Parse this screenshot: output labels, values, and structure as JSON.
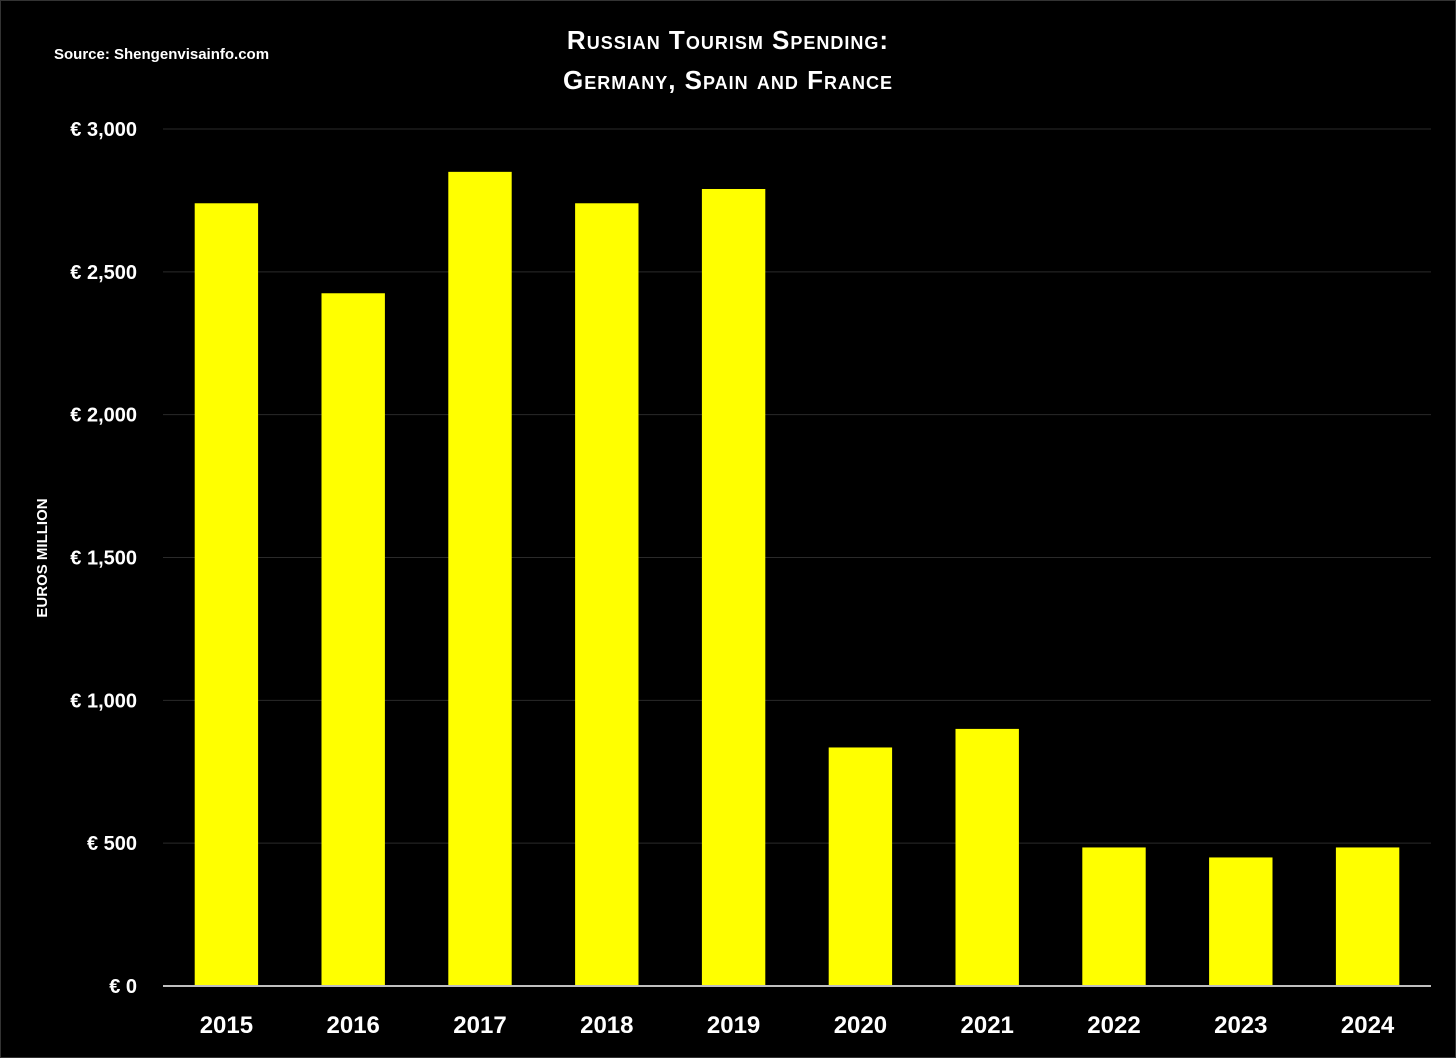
{
  "source": "Source: Shengenvisainfo.com",
  "chart_data": {
    "type": "bar",
    "title_line1": "Russian Tourism Spending:",
    "title_line2": "Germany, Spain and France",
    "xlabel": "",
    "ylabel": "EUROS MILLION",
    "categories": [
      "2015",
      "2016",
      "2017",
      "2018",
      "2019",
      "2020",
      "2021",
      "2022",
      "2023",
      "2024"
    ],
    "values": [
      2740,
      2425,
      2850,
      2740,
      2790,
      835,
      900,
      485,
      450,
      485
    ],
    "ylim": [
      0,
      3000
    ],
    "yticks": [
      0,
      500,
      1000,
      1500,
      2000,
      2500,
      3000
    ],
    "ytick_labels": [
      "€ 0",
      "€ 500",
      "€ 1,000",
      "€ 1,500",
      "€ 2,000",
      "€ 2,500",
      "€ 3,000"
    ],
    "bar_color": "#FFFF00",
    "background_color": "#000000",
    "text_color": "#FFFFFF",
    "grid": true,
    "legend": false
  }
}
